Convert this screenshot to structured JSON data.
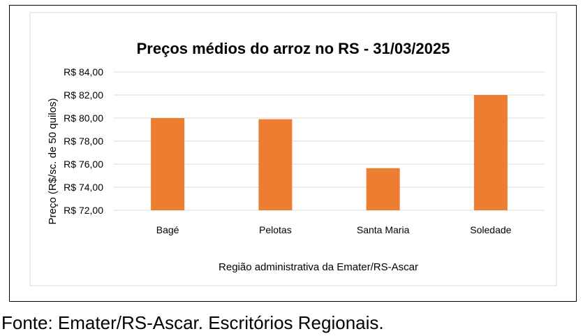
{
  "source": "Fonte: Emater/RS-Ascar. Escritórios Regionais.",
  "chart_data": {
    "type": "bar",
    "title": "Preços médios do arroz no RS  - 31/03/2025",
    "xlabel": "Região administrativa da Emater/RS-Ascar",
    "ylabel": "Preço (R$/sc. de 50 quilos)",
    "categories": [
      "Bagé",
      "Pelotas",
      "Santa Maria",
      "Soledade"
    ],
    "values": [
      80.0,
      79.9,
      75.65,
      82.0
    ],
    "ylim": [
      72,
      84
    ],
    "yticks": [
      "R$ 72,00",
      "R$ 74,00",
      "R$ 76,00",
      "R$ 78,00",
      "R$ 80,00",
      "R$ 82,00",
      "R$ 84,00"
    ],
    "grid": true,
    "legend": "none",
    "bar_color": "#ED7D31",
    "grid_color": "#D9D9D9"
  }
}
